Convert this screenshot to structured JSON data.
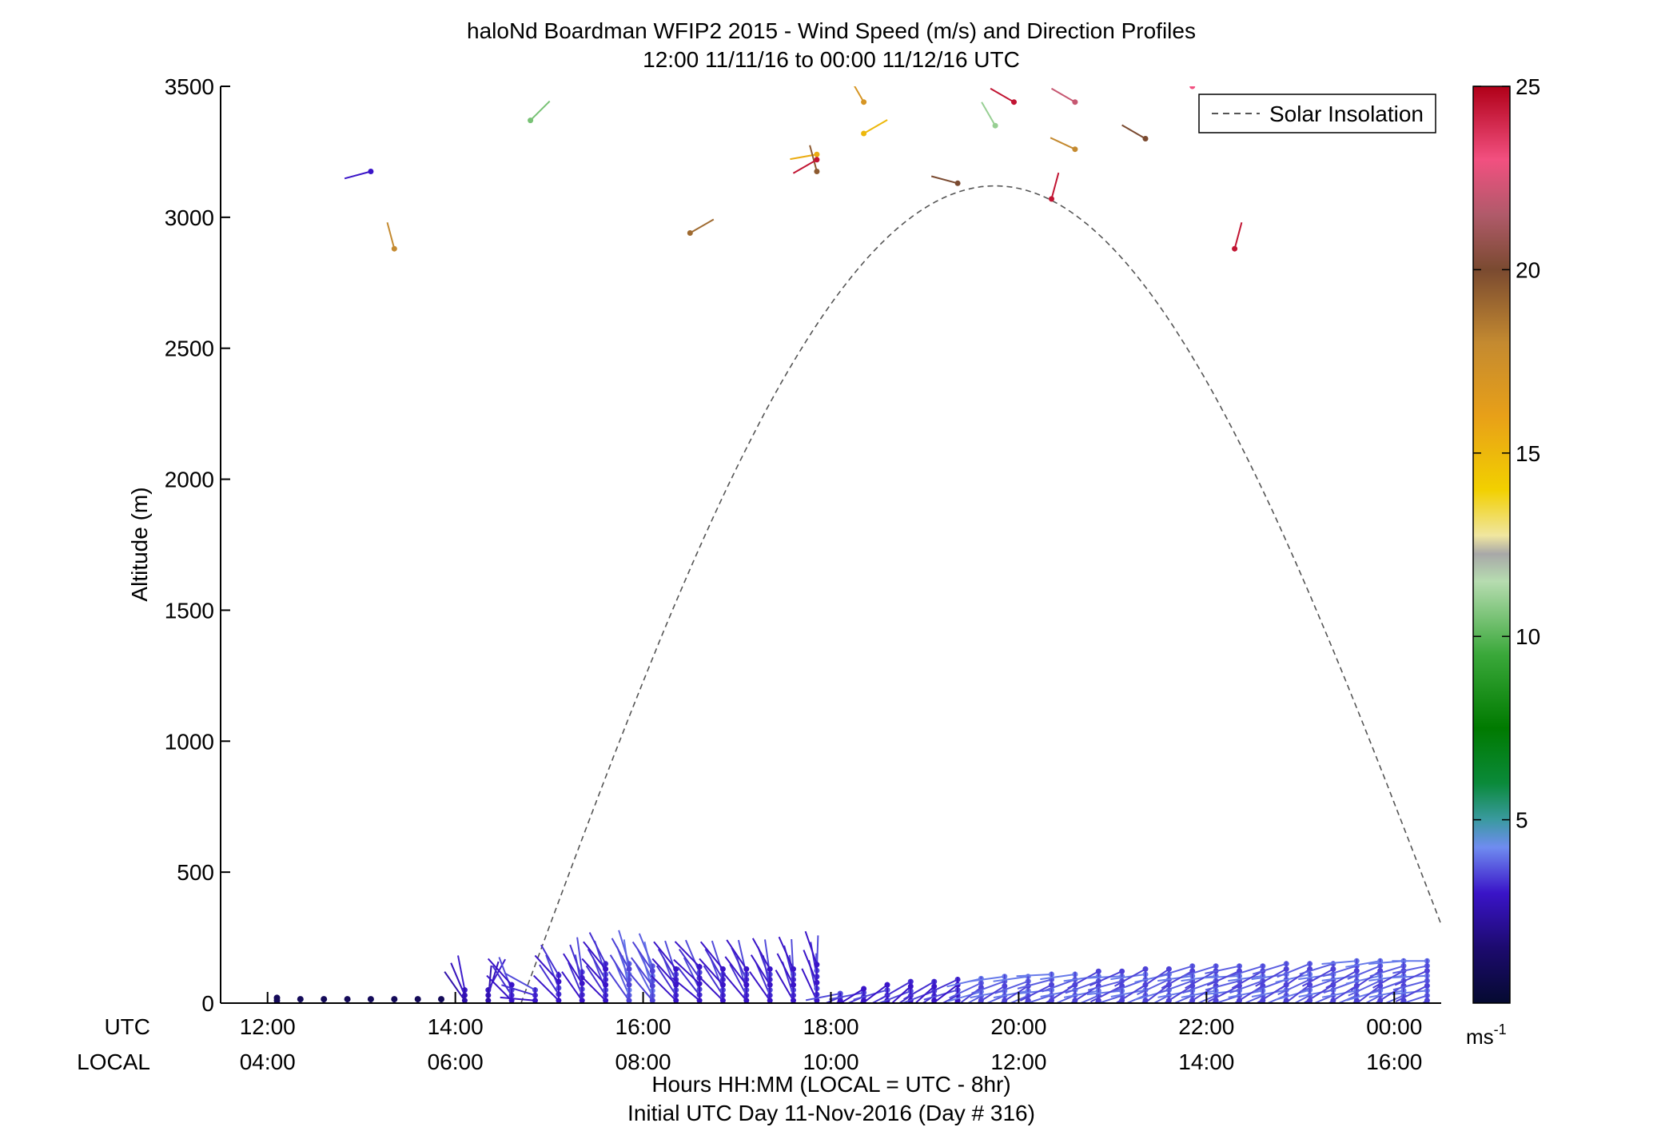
{
  "chart_data": {
    "type": "scatter",
    "title": "haloNd Boardman WFIP2 2015 - Wind Speed (m/s) and Direction Profiles",
    "subtitle": "12:00 11/11/16 to 00:00 11/12/16  UTC",
    "ylabel": "Altitude (m)",
    "xlabel": "Hours HH:MM  (LOCAL = UTC - 8hr)",
    "xlabel2": "Initial UTC Day 11-Nov-2016 (Day # 316)",
    "x_row_labels": [
      "UTC",
      "LOCAL"
    ],
    "xlim": [
      11.5,
      24.5
    ],
    "ylim": [
      0,
      3500
    ],
    "yticks": [
      0,
      500,
      1000,
      1500,
      2000,
      2500,
      3000,
      3500
    ],
    "xticks": [
      {
        "utc_hour": 12,
        "utc": "12:00",
        "local": "04:00"
      },
      {
        "utc_hour": 14,
        "utc": "14:00",
        "local": "06:00"
      },
      {
        "utc_hour": 16,
        "utc": "16:00",
        "local": "08:00"
      },
      {
        "utc_hour": 18,
        "utc": "18:00",
        "local": "10:00"
      },
      {
        "utc_hour": 20,
        "utc": "20:00",
        "local": "12:00"
      },
      {
        "utc_hour": 22,
        "utc": "22:00",
        "local": "14:00"
      },
      {
        "utc_hour": 24,
        "utc": "00:00",
        "local": "16:00"
      }
    ],
    "legend": {
      "label": "Solar Insolation",
      "position": "top-right",
      "color": "#555555"
    },
    "colorbar": {
      "min": 0,
      "max": 25,
      "ticks": [
        5,
        10,
        15,
        20,
        25
      ],
      "unit_base": "ms",
      "unit_exp": "-1"
    },
    "solar_insolation": {
      "start_hour": 14.7,
      "end_hour": 24.5,
      "peak_hour": 19.75,
      "peak_altitude": 3120,
      "start_altitude": 0,
      "end_altitude": 300
    },
    "upper_barbs": [
      {
        "h": 13.1,
        "alt": 3175,
        "speed": 3,
        "dir": 255
      },
      {
        "h": 13.35,
        "alt": 2880,
        "speed": 18,
        "dir": 345
      },
      {
        "h": 14.8,
        "alt": 3370,
        "speed": 10.5,
        "dir": 45
      },
      {
        "h": 16.5,
        "alt": 2940,
        "speed": 19,
        "dir": 60
      },
      {
        "h": 17.85,
        "alt": 3240,
        "speed": 15.5,
        "dir": 260
      },
      {
        "h": 17.85,
        "alt": 3175,
        "speed": 19.5,
        "dir": 345
      },
      {
        "h": 17.85,
        "alt": 3220,
        "speed": 24.5,
        "dir": 240
      },
      {
        "h": 18.35,
        "alt": 3440,
        "speed": 17,
        "dir": 330
      },
      {
        "h": 18.35,
        "alt": 3320,
        "speed": 15,
        "dir": 60
      },
      {
        "h": 19.35,
        "alt": 3130,
        "speed": 20,
        "dir": 285
      },
      {
        "h": 19.75,
        "alt": 3350,
        "speed": 11,
        "dir": 330
      },
      {
        "h": 19.95,
        "alt": 3440,
        "speed": 24.5,
        "dir": 300
      },
      {
        "h": 20.35,
        "alt": 3070,
        "speed": 24.5,
        "dir": 15
      },
      {
        "h": 20.6,
        "alt": 3260,
        "speed": 18,
        "dir": 295
      },
      {
        "h": 20.6,
        "alt": 3440,
        "speed": 22,
        "dir": 300
      },
      {
        "h": 21.35,
        "alt": 3300,
        "speed": 20,
        "dir": 300
      },
      {
        "h": 21.85,
        "alt": 3500,
        "speed": 23,
        "dir": 0
      },
      {
        "h": 22.3,
        "alt": 2880,
        "speed": 24.5,
        "dir": 15
      }
    ],
    "low_profiles": [
      {
        "h": 12.1,
        "calm": true,
        "alts": [
          20,
          10
        ]
      },
      {
        "h": 12.35,
        "calm": true,
        "alts": [
          15
        ]
      },
      {
        "h": 12.6,
        "calm": true,
        "alts": [
          15
        ]
      },
      {
        "h": 12.85,
        "calm": true,
        "alts": [
          15
        ]
      },
      {
        "h": 13.1,
        "calm": true,
        "alts": [
          15
        ]
      },
      {
        "h": 13.35,
        "calm": true,
        "alts": [
          15
        ]
      },
      {
        "h": 13.6,
        "calm": true,
        "alts": [
          15
        ]
      },
      {
        "h": 13.85,
        "calm": true,
        "alts": [
          15
        ]
      },
      {
        "h": 14.1,
        "calm": false,
        "top": 60,
        "n": 3,
        "dir": 340,
        "speed": 2.5
      },
      {
        "h": 14.35,
        "calm": false,
        "top": 60,
        "n": 3,
        "dir": 20,
        "speed": 2.5
      },
      {
        "h": 14.6,
        "calm": false,
        "top": 80,
        "n": 4,
        "dir": 330,
        "speed": 3
      },
      {
        "h": 14.85,
        "calm": false,
        "top": 60,
        "n": 3,
        "dir": 290,
        "speed": 3
      },
      {
        "h": 15.1,
        "calm": false,
        "top": 120,
        "n": 5,
        "dir": 330,
        "speed": 3
      },
      {
        "h": 15.35,
        "calm": false,
        "top": 130,
        "n": 6,
        "dir": 340,
        "speed": 3
      },
      {
        "h": 15.6,
        "calm": false,
        "top": 160,
        "n": 8,
        "dir": 330,
        "speed": 3
      },
      {
        "h": 15.85,
        "calm": false,
        "top": 160,
        "n": 8,
        "dir": 340,
        "speed": 3.5
      },
      {
        "h": 16.1,
        "calm": false,
        "top": 150,
        "n": 8,
        "dir": 335,
        "speed": 3.5
      },
      {
        "h": 16.35,
        "calm": false,
        "top": 140,
        "n": 7,
        "dir": 330,
        "speed": 3
      },
      {
        "h": 16.6,
        "calm": false,
        "top": 150,
        "n": 7,
        "dir": 325,
        "speed": 3
      },
      {
        "h": 16.85,
        "calm": false,
        "top": 140,
        "n": 7,
        "dir": 330,
        "speed": 3
      },
      {
        "h": 17.1,
        "calm": false,
        "top": 140,
        "n": 7,
        "dir": 335,
        "speed": 3
      },
      {
        "h": 17.35,
        "calm": false,
        "top": 140,
        "n": 7,
        "dir": 340,
        "speed": 3
      },
      {
        "h": 17.6,
        "calm": false,
        "top": 140,
        "n": 7,
        "dir": 345,
        "speed": 3
      },
      {
        "h": 17.85,
        "calm": false,
        "top": 160,
        "n": 7,
        "dir": 350,
        "speed": 3
      },
      {
        "h": 18.1,
        "calm": false,
        "top": 40,
        "n": 3,
        "dir": 250,
        "speed": 3
      },
      {
        "h": 18.35,
        "calm": false,
        "top": 60,
        "n": 4,
        "dir": 250,
        "speed": 3
      },
      {
        "h": 18.6,
        "calm": false,
        "top": 80,
        "n": 4,
        "dir": 245,
        "speed": 3
      },
      {
        "h": 18.85,
        "calm": false,
        "top": 90,
        "n": 5,
        "dir": 240,
        "speed": 3
      },
      {
        "h": 19.1,
        "calm": false,
        "top": 90,
        "n": 5,
        "dir": 240,
        "speed": 3
      },
      {
        "h": 19.35,
        "calm": false,
        "top": 100,
        "n": 5,
        "dir": 245,
        "speed": 3
      },
      {
        "h": 19.6,
        "calm": false,
        "top": 100,
        "n": 6,
        "dir": 245,
        "speed": 3.5
      },
      {
        "h": 19.85,
        "calm": false,
        "top": 110,
        "n": 6,
        "dir": 250,
        "speed": 3.5
      },
      {
        "h": 20.1,
        "calm": false,
        "top": 110,
        "n": 6,
        "dir": 250,
        "speed": 3.5
      },
      {
        "h": 20.35,
        "calm": false,
        "top": 120,
        "n": 6,
        "dir": 255,
        "speed": 3.5
      },
      {
        "h": 20.6,
        "calm": false,
        "top": 120,
        "n": 6,
        "dir": 250,
        "speed": 3.5
      },
      {
        "h": 20.85,
        "calm": false,
        "top": 130,
        "n": 7,
        "dir": 250,
        "speed": 3.5
      },
      {
        "h": 21.1,
        "calm": false,
        "top": 130,
        "n": 7,
        "dir": 255,
        "speed": 3.5
      },
      {
        "h": 21.35,
        "calm": false,
        "top": 140,
        "n": 7,
        "dir": 250,
        "speed": 3.5
      },
      {
        "h": 21.6,
        "calm": false,
        "top": 140,
        "n": 7,
        "dir": 245,
        "speed": 3.5
      },
      {
        "h": 21.85,
        "calm": false,
        "top": 150,
        "n": 8,
        "dir": 250,
        "speed": 3.5
      },
      {
        "h": 22.1,
        "calm": false,
        "top": 150,
        "n": 8,
        "dir": 250,
        "speed": 3.5
      },
      {
        "h": 22.35,
        "calm": false,
        "top": 150,
        "n": 8,
        "dir": 255,
        "speed": 3.5
      },
      {
        "h": 22.6,
        "calm": false,
        "top": 150,
        "n": 8,
        "dir": 250,
        "speed": 3.5
      },
      {
        "h": 22.85,
        "calm": false,
        "top": 160,
        "n": 8,
        "dir": 250,
        "speed": 3.5
      },
      {
        "h": 23.1,
        "calm": false,
        "top": 160,
        "n": 8,
        "dir": 245,
        "speed": 3.5
      },
      {
        "h": 23.35,
        "calm": false,
        "top": 160,
        "n": 8,
        "dir": 250,
        "speed": 3.5
      },
      {
        "h": 23.6,
        "calm": false,
        "top": 170,
        "n": 9,
        "dir": 250,
        "speed": 3.5
      },
      {
        "h": 23.85,
        "calm": false,
        "top": 170,
        "n": 9,
        "dir": 245,
        "speed": 3.5
      },
      {
        "h": 24.1,
        "calm": false,
        "top": 170,
        "n": 9,
        "dir": 250,
        "speed": 3.5
      },
      {
        "h": 24.35,
        "calm": false,
        "top": 170,
        "n": 9,
        "dir": 255,
        "speed": 3.5
      }
    ]
  }
}
